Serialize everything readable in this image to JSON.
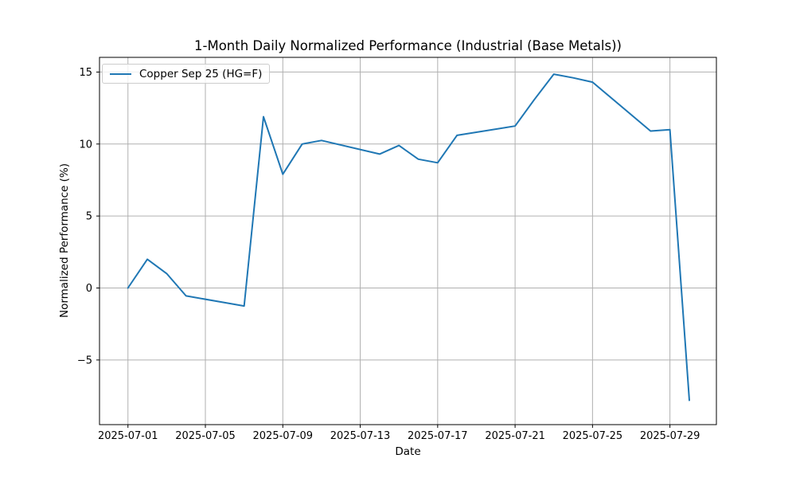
{
  "figure": {
    "background": "#ffffff"
  },
  "chart_data": {
    "type": "line",
    "title": "1-Month Daily Normalized Performance (Industrial (Base Metals))",
    "xlabel": "Date",
    "ylabel": "Normalized Performance (%)",
    "grid": true,
    "grid_color": "#b0b0b0",
    "legend": {
      "position": "upper left",
      "entries": [
        {
          "label": "Copper Sep 25 (HG=F)",
          "color": "#1f77b4"
        }
      ]
    },
    "series": [
      {
        "name": "Copper Sep 25 (HG=F)",
        "color": "#1f77b4",
        "x": [
          "2025-07-01",
          "2025-07-02",
          "2025-07-03",
          "2025-07-04",
          "2025-07-07",
          "2025-07-08",
          "2025-07-09",
          "2025-07-10",
          "2025-07-11",
          "2025-07-14",
          "2025-07-15",
          "2025-07-16",
          "2025-07-17",
          "2025-07-18",
          "2025-07-21",
          "2025-07-22",
          "2025-07-23",
          "2025-07-24",
          "2025-07-25",
          "2025-07-28",
          "2025-07-29",
          "2025-07-30"
        ],
        "y": [
          0.0,
          2.0,
          1.0,
          -0.55,
          -1.25,
          11.9,
          7.9,
          10.0,
          10.25,
          9.3,
          9.9,
          8.95,
          8.7,
          10.6,
          11.25,
          13.1,
          14.85,
          14.6,
          14.3,
          10.9,
          11.0,
          -7.8
        ]
      }
    ],
    "x_ticks": [
      "2025-07-01",
      "2025-07-05",
      "2025-07-09",
      "2025-07-13",
      "2025-07-17",
      "2025-07-21",
      "2025-07-25",
      "2025-07-29"
    ],
    "y_ticks": [
      15,
      10,
      5,
      0,
      -5
    ],
    "xlim_days_from_first_date": [
      -1.47,
      30.4
    ],
    "ylim": [
      -9.49,
      16.02
    ]
  }
}
